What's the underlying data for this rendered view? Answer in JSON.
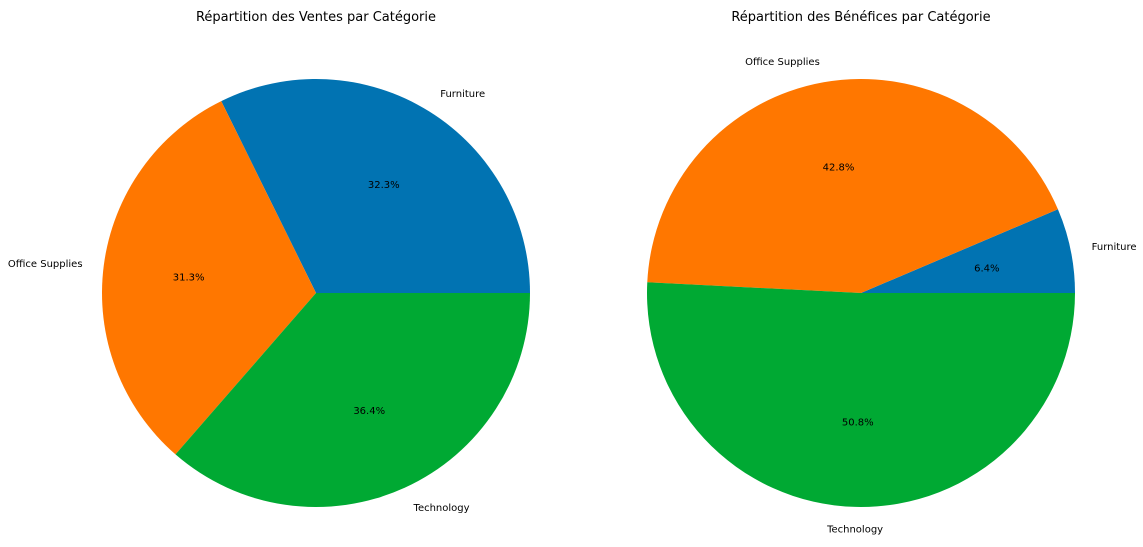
{
  "chart_data": [
    {
      "type": "pie",
      "title": "Répartition des Ventes par Catégorie",
      "categories": [
        "Furniture",
        "Office Supplies",
        "Technology"
      ],
      "values": [
        32.3,
        31.3,
        36.4
      ],
      "value_labels": [
        "32.3%",
        "31.3%",
        "36.4%"
      ],
      "colors": [
        "#0173b2",
        "#ff7700",
        "#00a933"
      ],
      "start_angle_deg": 0,
      "direction": "counterclockwise",
      "legend": "none"
    },
    {
      "type": "pie",
      "title": "Répartition des Bénéfices par Catégorie",
      "categories": [
        "Furniture",
        "Office Supplies",
        "Technology"
      ],
      "values": [
        6.4,
        42.8,
        50.8
      ],
      "value_labels": [
        "6.4%",
        "42.8%",
        "50.8%"
      ],
      "colors": [
        "#0173b2",
        "#ff7700",
        "#00a933"
      ],
      "start_angle_deg": 0,
      "direction": "counterclockwise",
      "legend": "none"
    }
  ]
}
